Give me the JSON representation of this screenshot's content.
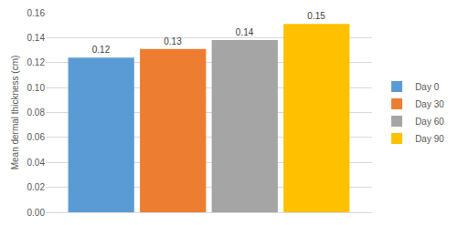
{
  "chart_data": {
    "type": "bar",
    "y_label": "Mean dermal thickness (cm)",
    "categories": [
      null
    ],
    "series": [
      {
        "name": "Day 0",
        "color": "#5b9bd5",
        "values": [
          0.124
        ],
        "value_labels": [
          "0.12"
        ]
      },
      {
        "name": "Day 30",
        "color": "#ed7d31",
        "values": [
          0.131
        ],
        "value_labels": [
          "0.13"
        ]
      },
      {
        "name": "Day 60",
        "color": "#a5a5a5",
        "values": [
          0.138
        ],
        "value_labels": [
          "0.14"
        ]
      },
      {
        "name": "Day 90",
        "color": "#ffc000",
        "values": [
          0.151
        ],
        "value_labels": [
          "0.15"
        ]
      }
    ],
    "ylim": [
      0,
      0.16
    ],
    "yticks": [
      {
        "value": 0,
        "label": "0.00"
      },
      {
        "value": 0.02,
        "label": "0.02"
      },
      {
        "value": 0.04,
        "label": "0.04"
      },
      {
        "value": 0.06,
        "label": "0.06"
      },
      {
        "value": 0.08,
        "label": "0.08"
      },
      {
        "value": 0.1,
        "label": "0.10"
      },
      {
        "value": 0.12,
        "label": "0.12"
      },
      {
        "value": 0.14,
        "label": "0.14"
      },
      {
        "value": 0.16,
        "label": "0.16"
      }
    ],
    "grid": true,
    "legend": "right",
    "data_labels": true
  }
}
